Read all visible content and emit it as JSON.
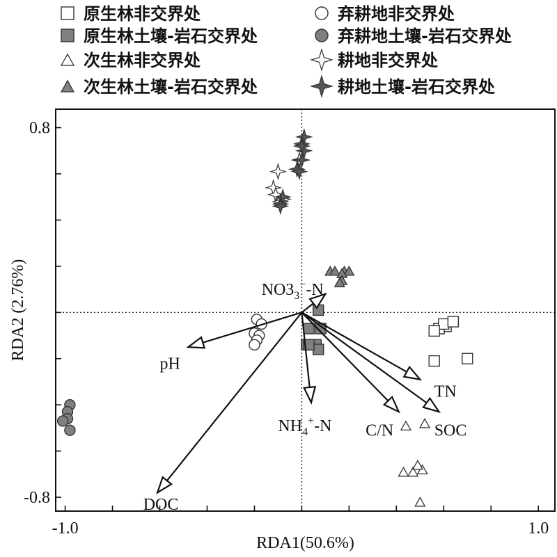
{
  "chart_data": {
    "type": "scatter",
    "xlabel": "RDA1(50.6%)",
    "ylabel": "RDA2 (2.76%)",
    "xlim": [
      -1.04,
      1.07
    ],
    "ylim": [
      -0.86,
      0.88
    ],
    "xticks": [
      "-1.0",
      "1.0"
    ],
    "xtick_values": [
      -1.0,
      1.0
    ],
    "yticks": [
      "0.8",
      "-0.8"
    ],
    "ytick_values": [
      0.8,
      -0.8
    ],
    "grid": false,
    "zero_lines": true,
    "legend_position": "top",
    "series": [
      {
        "name": "原生林非交界处",
        "marker": "square",
        "fill": "#ffffff",
        "points": [
          [
            0.58,
            -0.07
          ],
          [
            0.61,
            -0.06
          ],
          [
            0.58,
            -0.07
          ],
          [
            0.6,
            -0.05
          ],
          [
            0.64,
            -0.04
          ],
          [
            0.56,
            -0.08
          ],
          [
            0.56,
            -0.21
          ],
          [
            0.7,
            -0.2
          ]
        ]
      },
      {
        "name": "原生林土壤-岩石交界处",
        "marker": "square",
        "fill": "#808080",
        "points": [
          [
            0.07,
            0.01
          ],
          [
            0.03,
            -0.07
          ],
          [
            0.08,
            -0.07
          ],
          [
            0.02,
            -0.14
          ],
          [
            0.06,
            -0.14
          ],
          [
            0.07,
            -0.16
          ],
          [
            0.03,
            -0.14
          ]
        ]
      },
      {
        "name": "次生林非交界处",
        "marker": "triangle",
        "fill": "#ffffff",
        "points": [
          [
            0.44,
            -0.49
          ],
          [
            0.52,
            -0.48
          ],
          [
            0.43,
            -0.69
          ],
          [
            0.47,
            -0.69
          ],
          [
            0.51,
            -0.68
          ],
          [
            0.49,
            -0.66
          ],
          [
            0.5,
            -0.82
          ]
        ]
      },
      {
        "name": "次生林土壤-岩石交界处",
        "marker": "triangle",
        "fill": "#808080",
        "points": [
          [
            0.12,
            0.18
          ],
          [
            0.14,
            0.18
          ],
          [
            0.18,
            0.18
          ],
          [
            0.2,
            0.18
          ],
          [
            0.17,
            0.17
          ],
          [
            0.17,
            0.14
          ],
          [
            0.16,
            0.13
          ]
        ]
      },
      {
        "name": "弃耕地非交界处",
        "marker": "circle",
        "fill": "#ffffff",
        "points": [
          [
            -0.19,
            -0.03
          ],
          [
            -0.17,
            -0.05
          ],
          [
            -0.2,
            -0.09
          ],
          [
            -0.18,
            -0.1
          ],
          [
            -0.19,
            -0.12
          ],
          [
            -0.2,
            -0.14
          ]
        ]
      },
      {
        "name": "弃耕地土壤-岩石交界处",
        "marker": "circle",
        "fill": "#808080",
        "points": [
          [
            -0.98,
            -0.4
          ],
          [
            -0.99,
            -0.43
          ],
          [
            -0.99,
            -0.46
          ],
          [
            -1.01,
            -0.47
          ],
          [
            -0.98,
            -0.51
          ]
        ]
      },
      {
        "name": "耕地非交界处",
        "marker": "star",
        "fill": "#ffffff",
        "points": [
          [
            -0.1,
            0.61
          ],
          [
            -0.12,
            0.54
          ],
          [
            -0.11,
            0.51
          ],
          [
            -0.09,
            0.48
          ],
          [
            -0.08,
            0.49
          ],
          [
            -0.01,
            0.66
          ]
        ]
      },
      {
        "name": "耕地土壤-岩石交界处",
        "marker": "star",
        "fill": "#555555",
        "points": [
          [
            0.01,
            0.76
          ],
          [
            0.0,
            0.73
          ],
          [
            0.01,
            0.7
          ],
          [
            0.0,
            0.72
          ],
          [
            -0.02,
            0.62
          ],
          [
            -0.01,
            0.61
          ],
          [
            -0.08,
            0.5
          ],
          [
            -0.09,
            0.47
          ],
          [
            -0.09,
            0.46
          ],
          [
            0.0,
            0.66
          ]
        ]
      }
    ],
    "vectors": [
      {
        "name": "NO3",
        "superscript": "−",
        "suffix": "-N",
        "x": 0.1,
        "y": 0.08,
        "label_x": -0.17,
        "label_y": 0.1
      },
      {
        "name": "pH",
        "x": -0.48,
        "y": -0.15,
        "label_x": -0.6,
        "label_y": -0.22
      },
      {
        "name": "DOC",
        "x": -0.61,
        "y": -0.78,
        "label_x": -0.67,
        "label_y": -0.83
      },
      {
        "name": "NH",
        "subscript": "4",
        "superscript": "+",
        "suffix": "-N",
        "x": 0.04,
        "y": -0.39,
        "label_x": -0.1,
        "label_y": -0.49
      },
      {
        "name": "C/N",
        "x": 0.41,
        "y": -0.43,
        "label_x": 0.27,
        "label_y": -0.51
      },
      {
        "name": "TN",
        "x": 0.5,
        "y": -0.29,
        "label_x": 0.56,
        "label_y": -0.34
      },
      {
        "name": "SOC",
        "x": 0.58,
        "y": -0.43,
        "label_x": 0.56,
        "label_y": -0.51
      }
    ]
  }
}
